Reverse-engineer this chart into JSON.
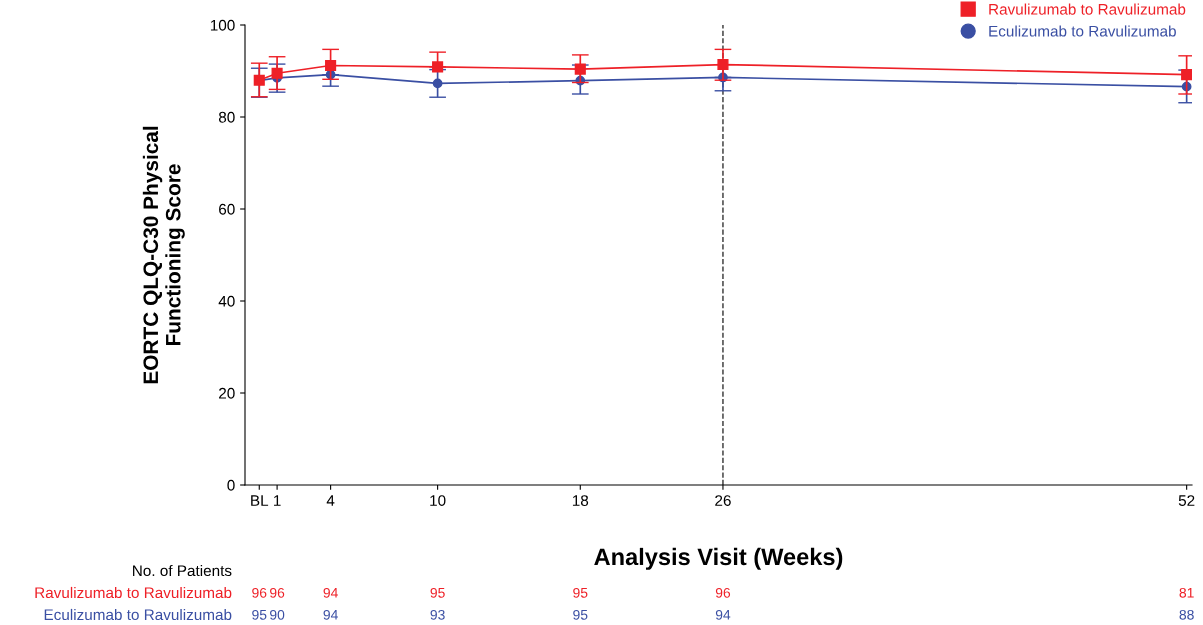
{
  "chart_data": {
    "type": "line",
    "xlabel": "Analysis Visit (Weeks)",
    "ylabel": "EORTC QLQ-C30 Physical\nFunctioning Score",
    "x": [
      0,
      1,
      4,
      10,
      18,
      26,
      52
    ],
    "xlim": [
      -0.8,
      52.3
    ],
    "xticks": [
      {
        "value": 0,
        "label": "BL"
      },
      1,
      4,
      10,
      18,
      26,
      52
    ],
    "ylim": [
      0,
      100
    ],
    "yticks": [
      0,
      20,
      40,
      60,
      80,
      100
    ],
    "grid": false,
    "legend": "top right",
    "series": [
      {
        "name": "Ravulizumab to Ravulizumab",
        "color": "#ee2027",
        "marker": "square",
        "values": [
          88.0,
          89.5,
          91.2,
          90.9,
          90.4,
          91.4,
          89.2
        ],
        "errors": [
          [
            84.4,
            91.7
          ],
          [
            86.0,
            93.1
          ],
          [
            88.2,
            94.7
          ],
          [
            90.9,
            94.1
          ],
          [
            87.5,
            93.5
          ],
          [
            88.0,
            94.7
          ],
          [
            85.0,
            93.3
          ]
        ]
      },
      {
        "name": "Eculizumab to Ravulizumab",
        "color": "#3a4fa3",
        "marker": "circle",
        "values": [
          87.9,
          88.5,
          89.2,
          87.3,
          87.9,
          88.6,
          86.6
        ],
        "errors": [
          [
            84.3,
            90.6
          ],
          [
            85.4,
            91.5
          ],
          [
            86.7,
            89.2
          ],
          [
            84.3,
            90.3
          ],
          [
            85.0,
            91.3
          ],
          [
            85.7,
            88.6
          ],
          [
            83.1,
            90.2
          ]
        ]
      }
    ],
    "ref_lines": [
      {
        "axis": "x",
        "value": 26,
        "color": "#333333",
        "line_style": "dashed"
      }
    ],
    "annotations": [
      "No. of Patients",
      "Ravulizumab to Ravulizumab",
      "96",
      "96",
      "94",
      "95",
      "95",
      "96",
      "81",
      "Eculizumab to Ravulizumab",
      "95",
      "90",
      "94",
      "93",
      "95",
      "94",
      "88"
    ]
  }
}
